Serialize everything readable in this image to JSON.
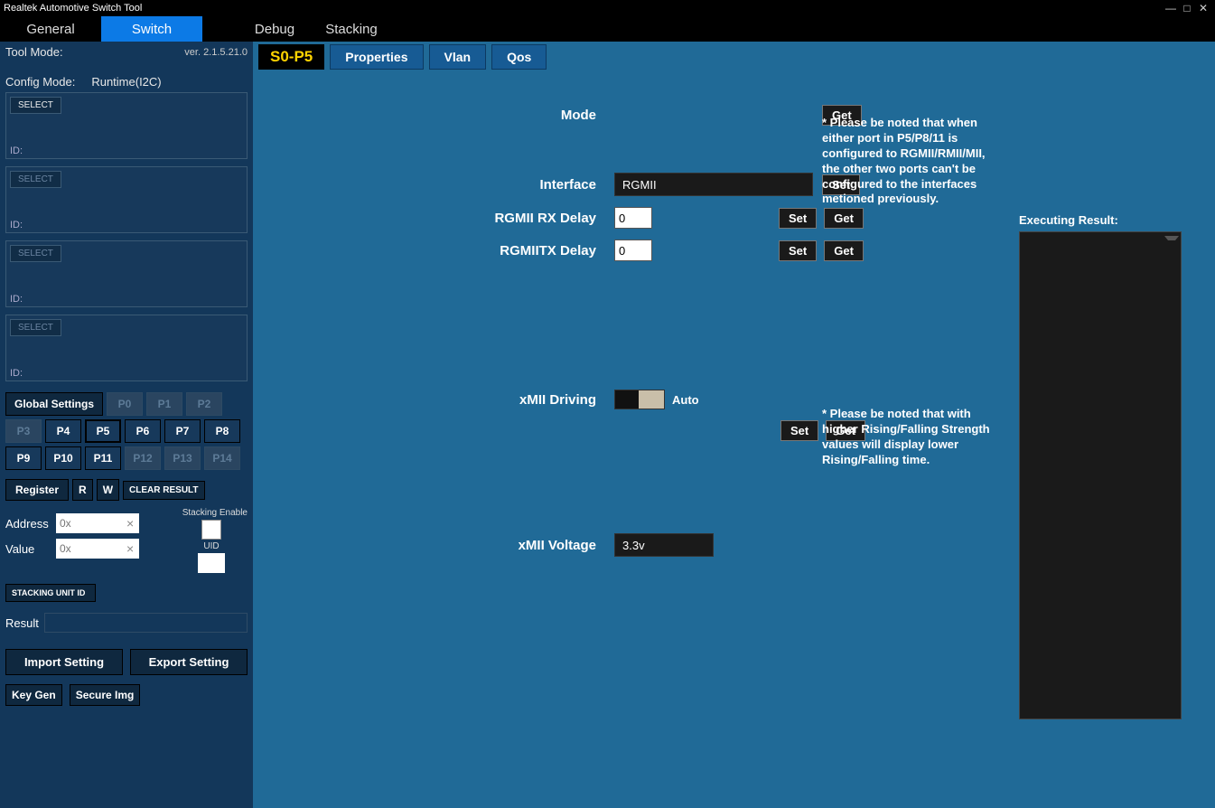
{
  "window": {
    "title": "Realtek Automotive Switch Tool"
  },
  "tabs": {
    "general": "General",
    "switch": "Switch",
    "debug": "Debug",
    "stacking": "Stacking",
    "active": "switch"
  },
  "left": {
    "tool_mode_label": "Tool Mode:",
    "version": "ver. 2.1.5.21.0",
    "config_mode_label": "Config Mode:",
    "config_mode_value": "Runtime(I2C)",
    "select_label": "SELECT",
    "id_label": "ID:",
    "global_settings": "Global Settings",
    "ports": [
      {
        "label": "P0",
        "enabled": false
      },
      {
        "label": "P1",
        "enabled": false
      },
      {
        "label": "P2",
        "enabled": false
      },
      {
        "label": "P3",
        "enabled": false
      },
      {
        "label": "P4",
        "enabled": true
      },
      {
        "label": "P5",
        "enabled": true,
        "selected": true
      },
      {
        "label": "P6",
        "enabled": true
      },
      {
        "label": "P7",
        "enabled": true
      },
      {
        "label": "P8",
        "enabled": true
      },
      {
        "label": "P9",
        "enabled": true
      },
      {
        "label": "P10",
        "enabled": true
      },
      {
        "label": "P11",
        "enabled": true
      },
      {
        "label": "P12",
        "enabled": false
      },
      {
        "label": "P13",
        "enabled": false
      },
      {
        "label": "P14",
        "enabled": false
      }
    ],
    "register_label": "Register",
    "r_label": "R",
    "w_label": "W",
    "clear_label": "CLEAR RESULT",
    "address_label": "Address",
    "value_label": "Value",
    "addr_placeholder": "0x",
    "value_placeholder": "0x",
    "stacking_enable_label": "Stacking Enable",
    "uid_label": "UID",
    "stacking_unit_id": "STACKING  UNIT ID",
    "result_label": "Result",
    "import_label": "Import Setting",
    "export_label": "Export Setting",
    "keygen_label": "Key Gen",
    "secureimg_label": "Secure Img"
  },
  "sub": {
    "port_indicator": "S0-P5",
    "properties": "Properties",
    "vlan": "Vlan",
    "qos": "Qos"
  },
  "form": {
    "mode_label": "Mode",
    "interface_label": "Interface",
    "interface_value": "RGMII",
    "rx_label": "RGMII RX Delay",
    "rx_value": "0",
    "tx_label": "RGMIITX Delay",
    "tx_value": "0",
    "xmii_driving_label": "xMII Driving",
    "driving_mode": "Auto",
    "xmii_voltage_label": "xMII Voltage",
    "voltage_value": "3.3v",
    "set_label": "Set",
    "get_label": "Get"
  },
  "notes": {
    "top": "* Please be noted that when either port in P5/P8/11 is configured to RGMII/RMII/MII, the other two ports can't be configured to the interfaces metioned previously.",
    "driving": "* Please be noted that with higher Rising/Falling Strength values will display lower Rising/Falling time."
  },
  "exec": {
    "label": "Executing Result:"
  }
}
